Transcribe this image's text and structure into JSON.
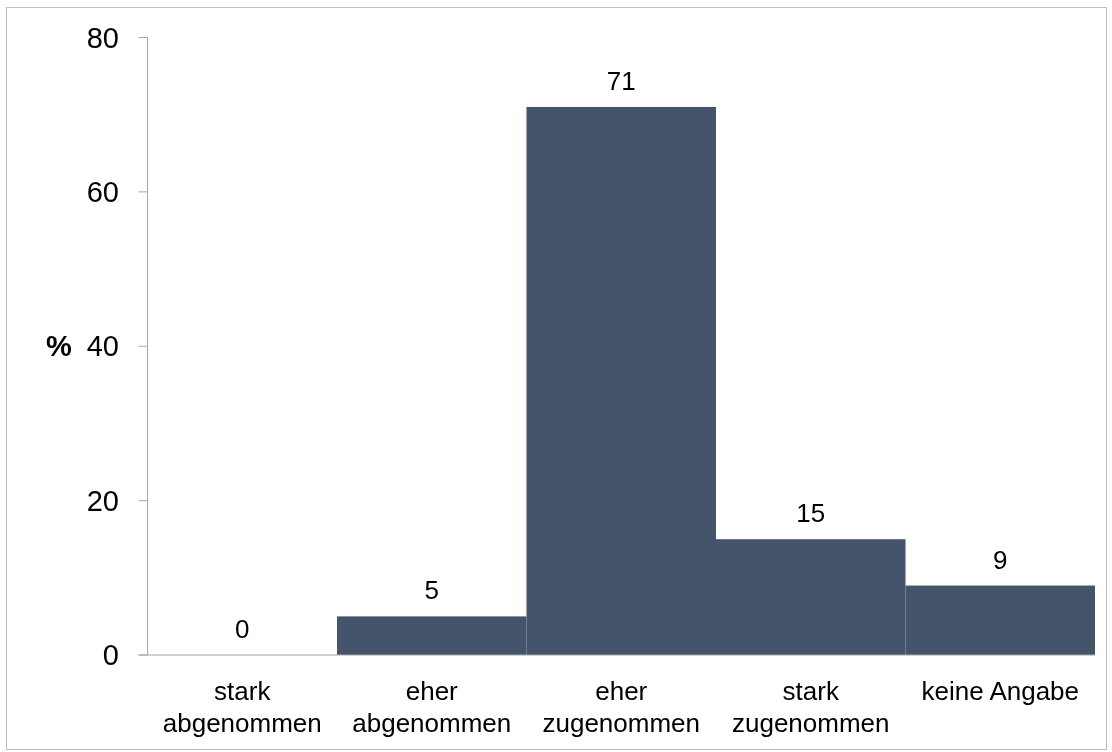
{
  "chart_data": {
    "type": "bar",
    "ylabel": "%",
    "categories": [
      "stark abgenommen",
      "eher abgenommen",
      "eher zugenommen",
      "stark zugenommen",
      "keine Angabe"
    ],
    "values": [
      0,
      5,
      71,
      15,
      9
    ],
    "color": "#44546a",
    "ylim": [
      0,
      80
    ],
    "yticks": [
      0,
      20,
      40,
      60,
      80
    ],
    "data_labels": true
  }
}
